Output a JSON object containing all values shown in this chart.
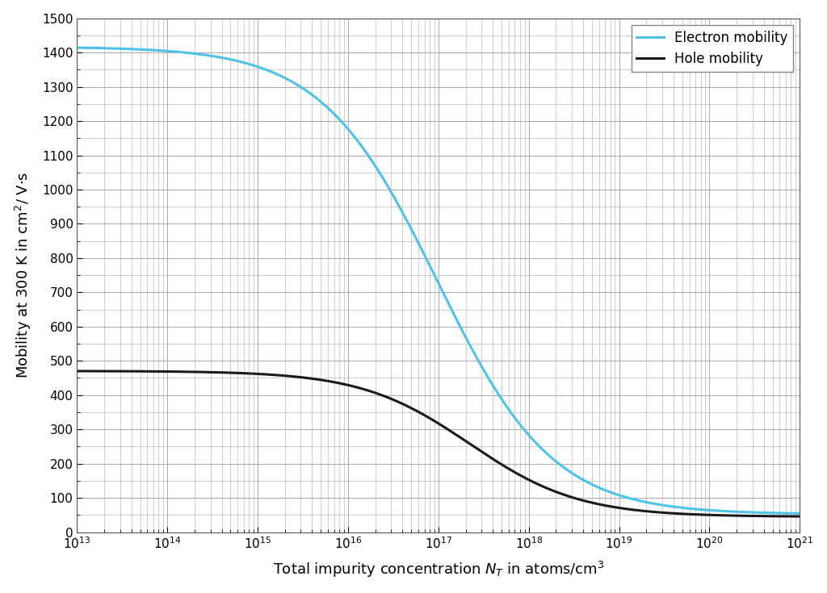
{
  "title": "",
  "xlabel": "Total impurity concentration $N_T$ in atoms/cm$^3$",
  "ylabel": "Mobility at 300 K in cm$^2$/ V·s",
  "legend_electron": "Electron mobility",
  "legend_hole": "Hole mobility",
  "electron_color": "#4DC3E8",
  "hole_color": "#1a1a1a",
  "xlim_log": [
    13,
    21
  ],
  "ylim": [
    0,
    1500
  ],
  "yticks": [
    0,
    100,
    200,
    300,
    400,
    500,
    600,
    700,
    800,
    900,
    1000,
    1100,
    1200,
    1300,
    1400,
    1500
  ],
  "xticks_log": [
    13,
    14,
    15,
    16,
    17,
    18,
    19,
    20,
    21
  ],
  "background_color": "#ffffff",
  "grid_color": "#aaaaaa",
  "electron_mu_max": 1417,
  "electron_mu_min": 52,
  "electron_Nr": 9.68e+16,
  "electron_alpha": 0.68,
  "hole_mu_max": 470.5,
  "hole_mu_min": 44.9,
  "hole_Nr": 2.23e+17,
  "hole_alpha": 0.719,
  "line_width": 2.2
}
